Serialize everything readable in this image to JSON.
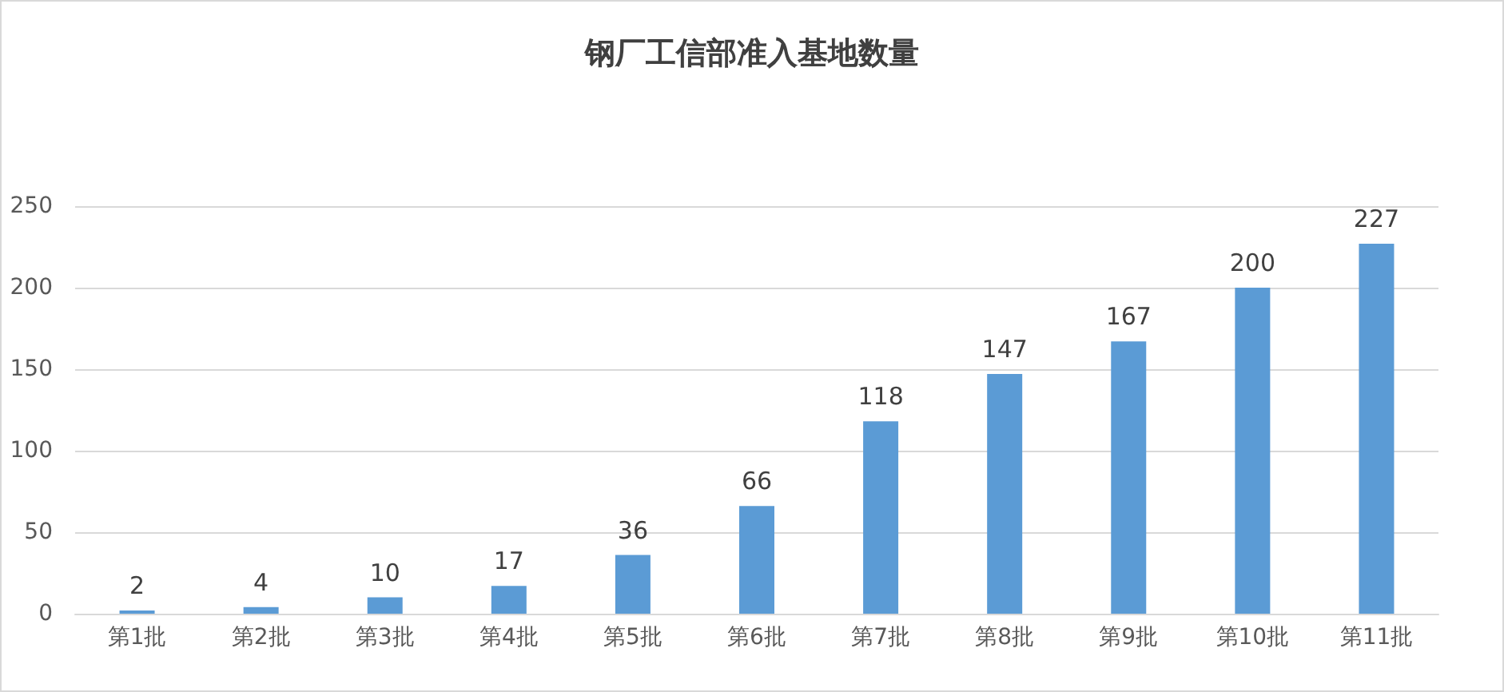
{
  "chart_data": {
    "type": "bar",
    "title": "钢厂工信部准入基地数量",
    "categories": [
      "第1批",
      "第2批",
      "第3批",
      "第4批",
      "第5批",
      "第6批",
      "第7批",
      "第8批",
      "第9批",
      "第10批",
      "第11批"
    ],
    "values": [
      2,
      4,
      10,
      17,
      36,
      66,
      118,
      147,
      167,
      200,
      227
    ],
    "color": "#5b9bd5",
    "ylim": [
      0,
      250
    ],
    "yticks": [
      0,
      50,
      100,
      150,
      200,
      250
    ],
    "grid": "y",
    "data_labels": true
  }
}
